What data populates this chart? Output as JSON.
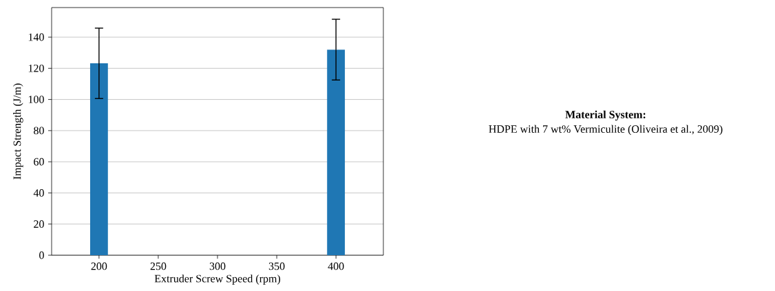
{
  "chart_data": {
    "type": "bar",
    "xlabel": "Extruder Screw Speed (rpm)",
    "ylabel": "Impact Strength (J/m)",
    "x": [
      200,
      400
    ],
    "values": [
      123.2,
      132.0
    ],
    "errors": [
      22.6,
      19.5
    ],
    "color": "#1f77b4",
    "xlim": [
      160,
      440
    ],
    "ylim": [
      0,
      159
    ],
    "xticks": [
      200,
      250,
      300,
      350,
      400
    ],
    "yticks": [
      0,
      20,
      40,
      60,
      80,
      100,
      120,
      140
    ],
    "grid": "y",
    "annotations": [
      "Material System:",
      "HDPE with 7 wt% Vermiculite (Oliveira et al., 2009)"
    ]
  }
}
